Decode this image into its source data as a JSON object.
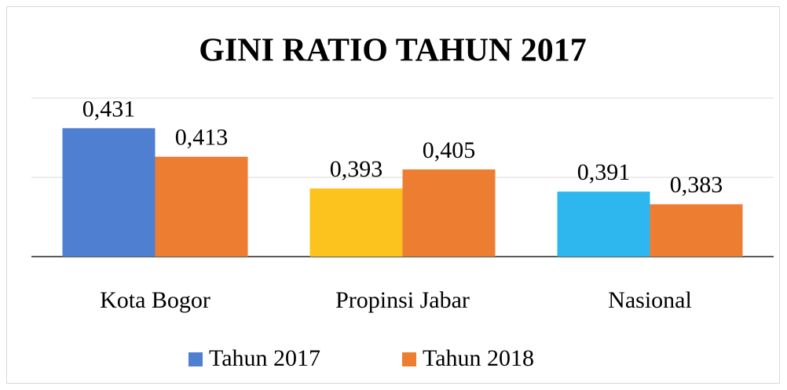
{
  "chart_data": {
    "type": "bar",
    "title": "GINI RATIO TAHUN 2017",
    "categories": [
      "Kota Bogor",
      "Propinsi Jabar",
      "Nasional"
    ],
    "series": [
      {
        "name": "Tahun 2017",
        "color": "#4f7fd0",
        "colors": [
          "#4f7fd0",
          "#fcc21e",
          "#2db7ee"
        ],
        "values": [
          0.431,
          0.393,
          0.391
        ],
        "value_labels": [
          "0,431",
          "0,393",
          "0,391"
        ]
      },
      {
        "name": "Tahun 2018",
        "color": "#ed7d31",
        "values": [
          0.413,
          0.405,
          0.383
        ],
        "value_labels": [
          "0,413",
          "0,405",
          "0,383"
        ]
      }
    ],
    "ylim": [
      0.35,
      0.45
    ],
    "yticks": [
      0.35,
      0.4,
      0.45
    ],
    "grid": true,
    "legend": "bottom"
  }
}
